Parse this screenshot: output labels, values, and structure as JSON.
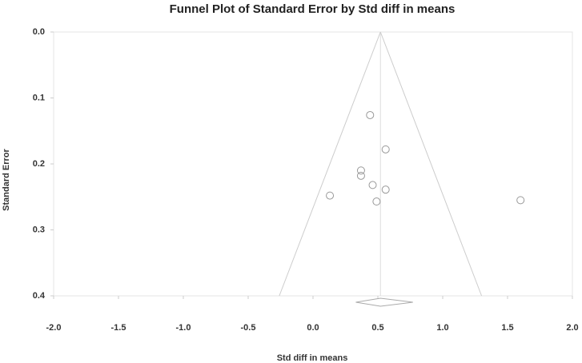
{
  "chart_data": {
    "type": "funnel",
    "title": "Funnel Plot of Standard Error by Std diff in means",
    "x_label": "Std diff in means",
    "y_label": "Standard Error",
    "x": [
      0.44,
      0.56,
      0.37,
      0.37,
      0.46,
      0.56,
      0.13,
      0.49,
      1.6
    ],
    "values": [
      0.126,
      0.178,
      0.21,
      0.218,
      0.232,
      0.239,
      0.248,
      0.257,
      0.255
    ],
    "color": "#999999",
    "funnel": {
      "center": 0.52,
      "lower": -0.26,
      "upper": 1.3
    },
    "summary": {
      "estimate": 0.52,
      "lower": 0.33,
      "upper": 0.77
    },
    "xlim": [
      -2.0,
      2.0
    ],
    "ylim": [
      0.0,
      0.4
    ],
    "y_reversed": true,
    "xticks": [
      {
        "value": -2.0,
        "label": "-2.0"
      },
      {
        "value": -1.5,
        "label": "-1.5"
      },
      {
        "value": -1.0,
        "label": "-1.0"
      },
      {
        "value": -0.5,
        "label": "-0.5"
      },
      {
        "value": 0.0,
        "label": "0.0"
      },
      {
        "value": 0.5,
        "label": "0.5"
      },
      {
        "value": 1.0,
        "label": "1.0"
      },
      {
        "value": 1.5,
        "label": "1.5"
      },
      {
        "value": 2.0,
        "label": "2.0"
      }
    ],
    "yticks": [
      {
        "value": 0.0,
        "label": "0.0"
      },
      {
        "value": 0.1,
        "label": "0.1"
      },
      {
        "value": 0.2,
        "label": "0.2"
      },
      {
        "value": 0.3,
        "label": "0.3"
      },
      {
        "value": 0.4,
        "label": "0.4"
      }
    ]
  }
}
